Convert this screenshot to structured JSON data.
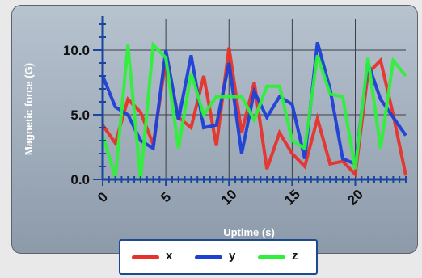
{
  "chart_data": {
    "type": "line",
    "title": "",
    "xlabel": "Uptime (s)",
    "ylabel": "Magnetic force (G)",
    "xlim": [
      0,
      24
    ],
    "ylim": [
      0,
      12
    ],
    "x_ticks": [
      0,
      5,
      10,
      15,
      20
    ],
    "x_tick_labels": [
      "0",
      "5",
      "10",
      "15",
      "20"
    ],
    "y_ticks": [
      0,
      5,
      10
    ],
    "y_tick_labels": [
      "0.0",
      "5.0",
      "10.0"
    ],
    "grid": true,
    "legend_position": "bottom",
    "x": [
      0,
      1,
      2,
      3,
      4,
      5,
      6,
      7,
      8,
      9,
      10,
      11,
      12,
      13,
      14,
      15,
      16,
      17,
      18,
      19,
      20,
      21,
      22,
      23,
      24
    ],
    "series": [
      {
        "name": "x",
        "color": "#e8312a",
        "values": [
          4.2,
          2.8,
          6.2,
          5.2,
          2.7,
          9.2,
          4.8,
          4.0,
          8.0,
          2.6,
          10.2,
          3.6,
          7.5,
          0.8,
          3.6,
          2.0,
          1.0,
          4.7,
          1.2,
          1.4,
          0.4,
          8.2,
          9.2,
          5.0,
          0.3
        ]
      },
      {
        "name": "y",
        "color": "#1c3fd6",
        "values": [
          8.0,
          5.6,
          5.0,
          3.0,
          2.4,
          10.0,
          4.6,
          9.6,
          4.0,
          4.2,
          9.0,
          2.0,
          6.8,
          4.8,
          6.4,
          5.8,
          1.6,
          10.6,
          7.0,
          1.6,
          1.2,
          9.0,
          6.2,
          4.8,
          3.4
        ]
      },
      {
        "name": "z",
        "color": "#2ef03a",
        "values": [
          3.4,
          0.2,
          10.4,
          0.0,
          10.4,
          9.4,
          2.4,
          8.2,
          5.0,
          6.4,
          6.4,
          6.4,
          4.6,
          7.2,
          7.2,
          3.0,
          2.4,
          9.6,
          6.6,
          6.4,
          0.8,
          9.4,
          2.4,
          9.2,
          8.0
        ]
      }
    ]
  }
}
